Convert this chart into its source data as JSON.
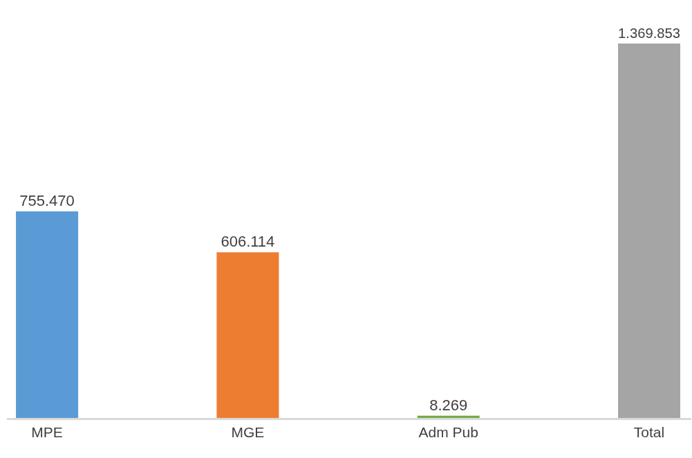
{
  "chart_data": {
    "type": "bar",
    "categories": [
      "MPE",
      "MGE",
      "Adm Pub",
      "Total"
    ],
    "values": [
      755470,
      606114,
      8269,
      1369853
    ],
    "colors": [
      "#5b9bd5",
      "#ed7d31",
      "#70ad47",
      "#a5a5a5"
    ],
    "value_labels": [
      "755.470",
      "606.114",
      "8.269",
      "1.369.853"
    ],
    "legend": false
  }
}
